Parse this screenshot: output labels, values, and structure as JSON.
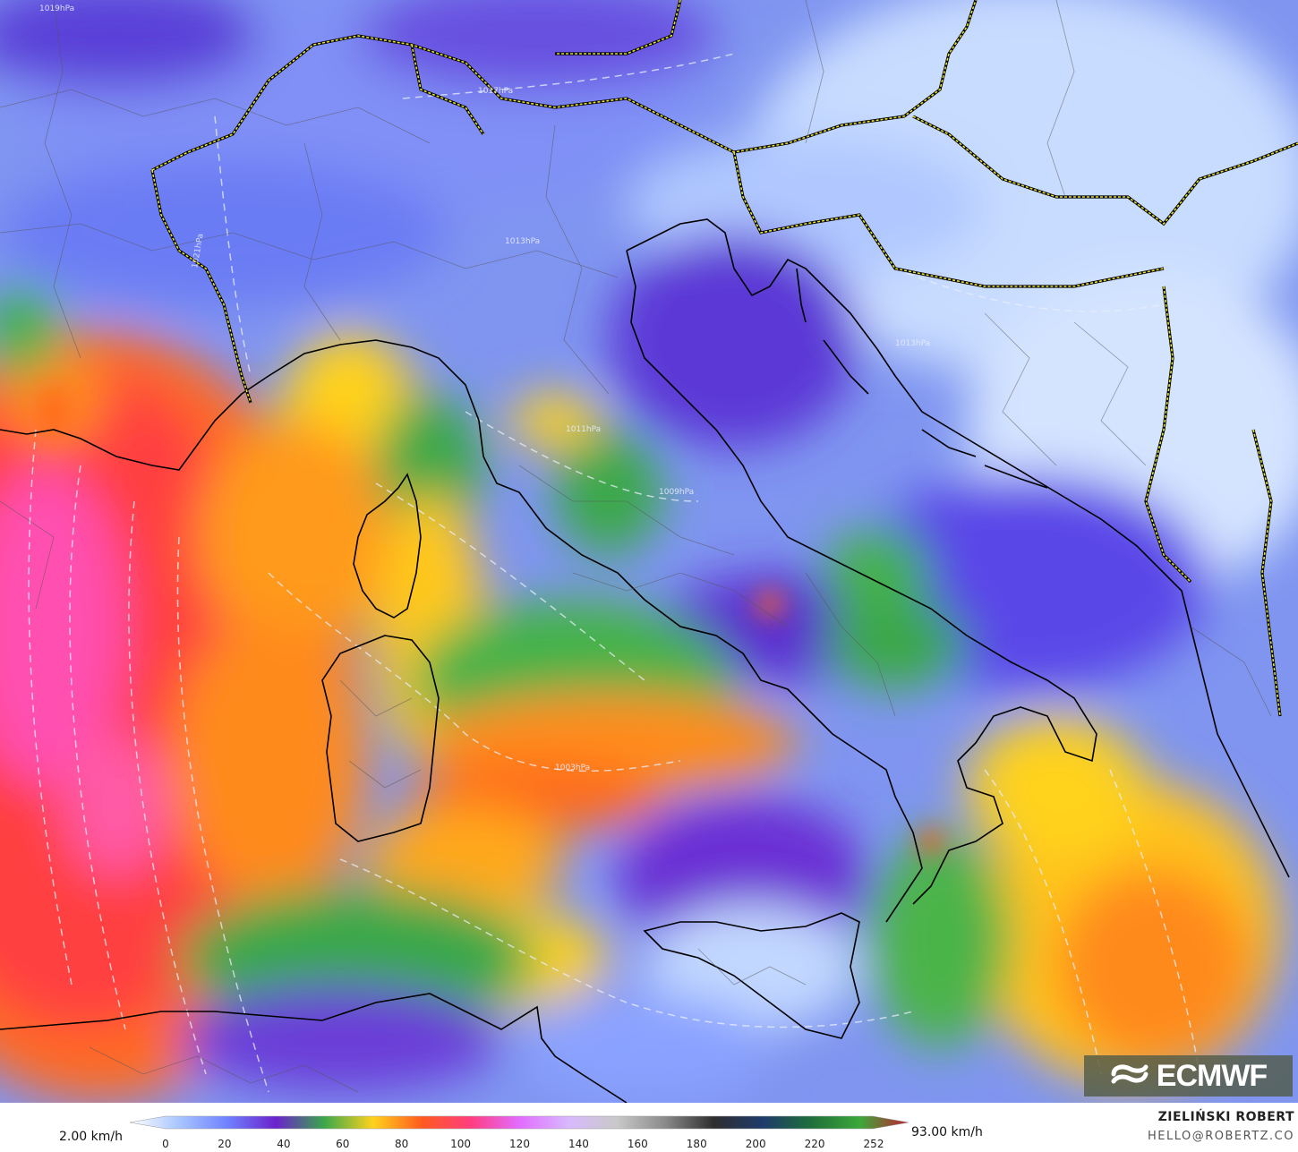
{
  "colorbar": {
    "min_label": "2.00 km/h",
    "max_label": "93.00 km/h",
    "ticks": [
      "0",
      "20",
      "40",
      "60",
      "80",
      "100",
      "120",
      "140",
      "160",
      "180",
      "200",
      "220",
      "252"
    ],
    "colors": [
      "#ffffff",
      "#aac6ff",
      "#6f82ff",
      "#6a22cc",
      "#3aa84a",
      "#ffd21e",
      "#ff5a1e",
      "#ff3d7f",
      "#e26cff",
      "#d8b8ff",
      "#c9c9c9",
      "#8a8a8a",
      "#2e2e2e",
      "#1f3b6b",
      "#1f6f3a",
      "#3ca83a",
      "#c41e2f"
    ]
  },
  "credits": {
    "author": "ZIELIŃSKI ROBERT",
    "email": "HELLO@ROBERTZ.CO"
  },
  "logo": {
    "text": "ECMWF",
    "icon": "ecmwf-wave-icon"
  },
  "map": {
    "isobar_labels": [
      "1019hPa",
      "1017hPa",
      "1021hPa",
      "1013hPa",
      "1011hPa",
      "1009hPa",
      "1013hPa",
      "1003hPa"
    ]
  }
}
